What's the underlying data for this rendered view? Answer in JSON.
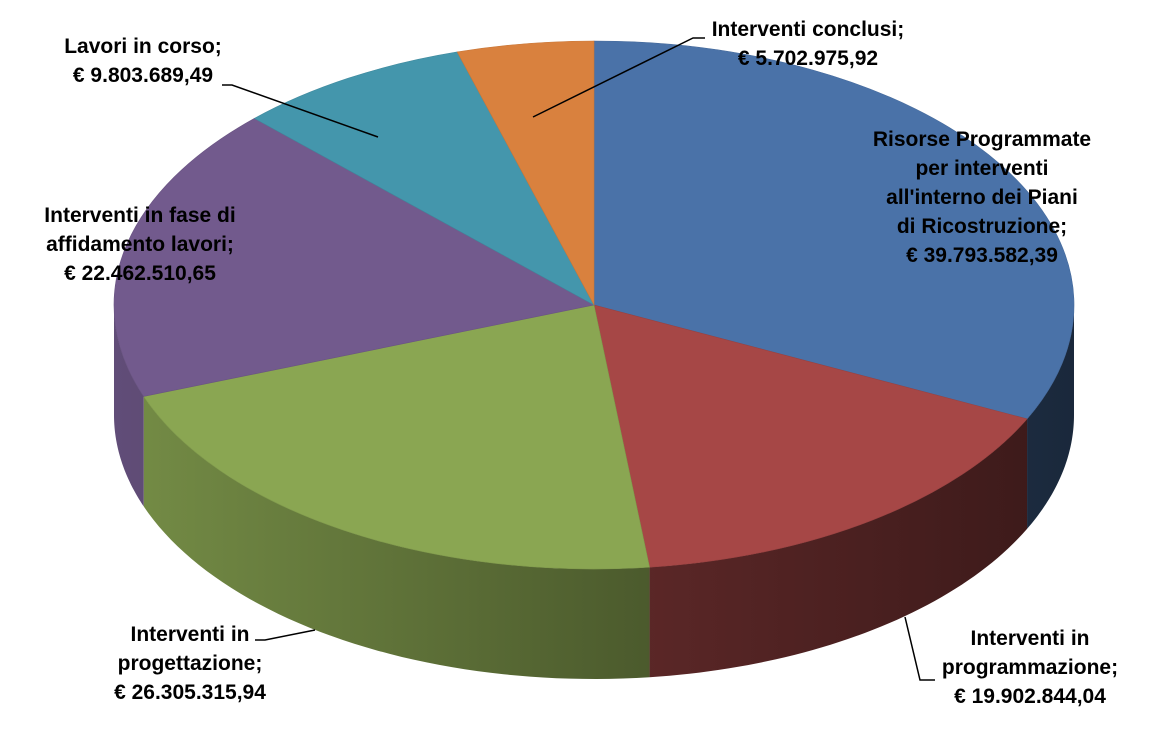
{
  "chart_data": {
    "type": "pie",
    "style": "3d",
    "legend": "none",
    "slices": [
      {
        "label_lines": [
          "Risorse Programmate",
          "per interventi",
          "all'interno dei Piani",
          "di Ricostruzione;"
        ],
        "value_text": "€ 39.793.582,39",
        "value": 39793582.39,
        "color": "#4A72A8"
      },
      {
        "label_lines": [
          "Interventi in",
          "programmazione;"
        ],
        "value_text": "€ 19.902.844,04",
        "value": 19902844.04,
        "color": "#A64746"
      },
      {
        "label_lines": [
          "Interventi in",
          "progettazione;"
        ],
        "value_text": "€ 26.305.315,94",
        "value": 26305315.94,
        "color": "#8AA652"
      },
      {
        "label_lines": [
          "Interventi in fase di",
          "affidamento lavori;"
        ],
        "value_text": "€ 22.462.510,65",
        "value": 22462510.65,
        "color": "#725A8D"
      },
      {
        "label_lines": [
          "Lavori in corso;"
        ],
        "value_text": "€ 9.803.689,49",
        "value": 9803689.49,
        "color": "#4496AC"
      },
      {
        "label_lines": [
          "Interventi conclusi;"
        ],
        "value_text": "€ 5.702.975,92",
        "value": 5702975.92,
        "color": "#D9813E"
      }
    ]
  }
}
